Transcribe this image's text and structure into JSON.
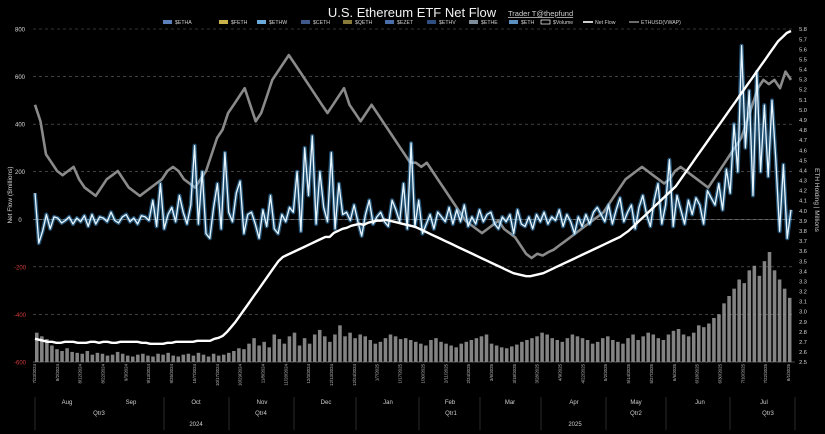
{
  "chart_data": {
    "type": "line",
    "title": "U.S. Ethereum ETF Net Flow",
    "subtitle": "Trader T@thepfund",
    "ylabel_left": "Net Flow ($millions)",
    "ylabel_right": "ETH Holding | Millions",
    "ylim_left": [
      -600,
      800
    ],
    "yticks_left": [
      800,
      600,
      400,
      200,
      0,
      -200,
      -400,
      -600
    ],
    "ylim_right": [
      2.5,
      5.8
    ],
    "yticks_right": [
      5.8,
      5.7,
      5.6,
      5.5,
      5.4,
      5.3,
      5.2,
      5.1,
      5.0,
      4.9,
      4.8,
      4.7,
      4.6,
      4.5,
      4.4,
      4.3,
      4.2,
      4.1,
      4.0,
      3.9,
      3.8,
      3.7,
      3.6,
      3.5,
      3.4,
      3.3,
      3.2,
      3.1,
      3.0,
      2.9,
      2.8,
      2.7,
      2.6,
      2.5
    ],
    "legend": [
      {
        "name": "$ETHA",
        "color": "#5b7fb8",
        "style": "bar"
      },
      {
        "name": "$FETH",
        "color": "#c8b34a",
        "style": "bar"
      },
      {
        "name": "$ETHW",
        "color": "#6aa9d8",
        "style": "bar"
      },
      {
        "name": "$CETH",
        "color": "#3f5a8a",
        "style": "bar"
      },
      {
        "name": "$QETH",
        "color": "#8a7a3a",
        "style": "bar"
      },
      {
        "name": "$EZET",
        "color": "#4a6fa8",
        "style": "bar"
      },
      {
        "name": "$ETHV",
        "color": "#2f4f80",
        "style": "bar"
      },
      {
        "name": "$ETHE",
        "color": "#7f8c9a",
        "style": "bar"
      },
      {
        "name": "$ETH",
        "color": "#5a8fc0",
        "style": "bar"
      },
      {
        "name": "$Volume",
        "color": "#ffffff",
        "style": "box"
      },
      {
        "name": "Net Flow",
        "color": "#ffffff",
        "style": "line"
      },
      {
        "name": "ETHUSD(VWAP)",
        "color": "#888888",
        "style": "line"
      }
    ],
    "months": [
      "Aug",
      "Sep",
      "Oct",
      "Nov",
      "Dec",
      "Jan",
      "Feb",
      "Mar",
      "Apr",
      "May",
      "Jun",
      "Jul"
    ],
    "quarters": [
      "Qtr3",
      "Qtr4",
      "Qtr1",
      "Qtr2",
      "Qtr3"
    ],
    "years": [
      "2024",
      "2025"
    ],
    "date_labels": [
      "7/23/2024",
      "8/2/2024",
      "8/12/2024",
      "8/22/2024",
      "9/3/2024",
      "9/13/2024",
      "9/25/2024",
      "10/7/2024",
      "10/17/2024",
      "10/29/2024",
      "11/8/2024",
      "11/20/2024",
      "12/3/2024",
      "12/13/2024",
      "12/24/2024",
      "1/7/2025",
      "1/17/2025",
      "1/30/2025",
      "2/11/2025",
      "2/24/2025",
      "3/6/2025",
      "3/18/2025",
      "3/28/2025",
      "4/9/2025",
      "4/22/2025",
      "5/2/2025",
      "5/14/2025",
      "5/27/2025",
      "6/6/2025",
      "6/18/2025",
      "6/30/2025",
      "7/10/2025",
      "7/22/2025",
      "8/1/2025"
    ],
    "net_flow": [
      110,
      -100,
      -50,
      20,
      -40,
      10,
      5,
      -15,
      -5,
      10,
      -20,
      5,
      -10,
      15,
      -30,
      20,
      -20,
      10,
      5,
      -10,
      30,
      -5,
      -15,
      10,
      20,
      -10,
      5,
      -20,
      15,
      10,
      -5,
      80,
      -30,
      150,
      -40,
      20,
      50,
      -10,
      100,
      30,
      -20,
      60,
      310,
      -20,
      200,
      -60,
      -80,
      50,
      150,
      -40,
      280,
      30,
      -10,
      110,
      160,
      -60,
      20,
      30,
      -20,
      -80,
      40,
      -30,
      100,
      -40,
      -60,
      20,
      -10,
      50,
      30,
      200,
      -50,
      300,
      100,
      350,
      -20,
      200,
      50,
      -10,
      280,
      -40,
      150,
      20,
      30,
      -5,
      60,
      -10,
      -70,
      20,
      80,
      -20,
      10,
      30,
      -10,
      -30,
      80,
      40,
      -10,
      150,
      -40,
      320,
      -30,
      80,
      -60,
      -20,
      20,
      -40,
      30,
      10,
      -10,
      50,
      -20,
      40,
      -10,
      60,
      -30,
      10,
      -20,
      40,
      -10,
      20,
      30,
      -20,
      -40,
      10,
      -10,
      20,
      -60,
      40,
      -20,
      -30,
      10,
      -40,
      20,
      -10,
      30,
      -20,
      10,
      -5,
      40,
      -30,
      20,
      -10,
      -60,
      10,
      -30,
      20,
      -20,
      30,
      50,
      20,
      -10,
      60,
      -20,
      40,
      90,
      -10,
      30,
      60,
      -40,
      50,
      100,
      20,
      -30,
      80,
      150,
      -20,
      60,
      250,
      -30,
      100,
      40,
      -20,
      80,
      20,
      90,
      60,
      -20,
      120,
      90,
      60,
      150,
      40,
      210,
      110,
      400,
      200,
      730,
      300,
      540,
      100,
      620,
      200,
      480,
      180,
      500,
      250,
      -50,
      230,
      -80,
      40
    ],
    "eth_holding": [
      2.73,
      2.72,
      2.71,
      2.7,
      2.7,
      2.69,
      2.69,
      2.7,
      2.7,
      2.7,
      2.69,
      2.69,
      2.69,
      2.7,
      2.7,
      2.69,
      2.7,
      2.7,
      2.69,
      2.69,
      2.7,
      2.7,
      2.7,
      2.7,
      2.7,
      2.69,
      2.69,
      2.68,
      2.68,
      2.68,
      2.68,
      2.69,
      2.69,
      2.7,
      2.7,
      2.7,
      2.7,
      2.7,
      2.71,
      2.71,
      2.71,
      2.71,
      2.73,
      2.74,
      2.76,
      2.8,
      2.85,
      2.9,
      2.96,
      3.02,
      3.08,
      3.14,
      3.2,
      3.26,
      3.32,
      3.38,
      3.44,
      3.5,
      3.54,
      3.56,
      3.58,
      3.6,
      3.62,
      3.64,
      3.66,
      3.68,
      3.7,
      3.72,
      3.74,
      3.74,
      3.78,
      3.8,
      3.82,
      3.83,
      3.85,
      3.86,
      3.87,
      3.86,
      3.88,
      3.89,
      3.9,
      3.9,
      3.91,
      3.9,
      3.89,
      3.88,
      3.87,
      3.86,
      3.85,
      3.84,
      3.82,
      3.8,
      3.78,
      3.76,
      3.74,
      3.72,
      3.7,
      3.68,
      3.66,
      3.64,
      3.62,
      3.6,
      3.58,
      3.56,
      3.54,
      3.52,
      3.5,
      3.48,
      3.46,
      3.44,
      3.42,
      3.4,
      3.38,
      3.37,
      3.36,
      3.35,
      3.35,
      3.36,
      3.37,
      3.38,
      3.4,
      3.42,
      3.44,
      3.46,
      3.48,
      3.5,
      3.52,
      3.54,
      3.56,
      3.58,
      3.6,
      3.62,
      3.64,
      3.66,
      3.68,
      3.7,
      3.72,
      3.74,
      3.77,
      3.8,
      3.84,
      3.88,
      3.92,
      3.96,
      4.0,
      4.04,
      4.08,
      4.12,
      4.16,
      4.2,
      4.24,
      4.3,
      4.36,
      4.42,
      4.48,
      4.54,
      4.6,
      4.66,
      4.72,
      4.78,
      4.84,
      4.9,
      4.96,
      5.02,
      5.08,
      5.14,
      5.2,
      5.26,
      5.32,
      5.38,
      5.44,
      5.5,
      5.56,
      5.62,
      5.68,
      5.72,
      5.76,
      5.78
    ],
    "eth_price": [
      3400,
      3200,
      2800,
      2700,
      2600,
      2550,
      2600,
      2650,
      2500,
      2400,
      2350,
      2300,
      2400,
      2500,
      2550,
      2600,
      2500,
      2400,
      2350,
      2300,
      2350,
      2400,
      2450,
      2500,
      2600,
      2650,
      2600,
      2500,
      2450,
      2400,
      2500,
      2600,
      2800,
      3000,
      3100,
      3300,
      3400,
      3500,
      3600,
      3400,
      3200,
      3300,
      3500,
      3700,
      3800,
      3900,
      4000,
      3900,
      3800,
      3700,
      3600,
      3500,
      3400,
      3300,
      3400,
      3500,
      3600,
      3400,
      3300,
      3200,
      3300,
      3400,
      3300,
      3200,
      3100,
      3000,
      2900,
      2800,
      2700,
      2700,
      2650,
      2700,
      2600,
      2500,
      2400,
      2300,
      2200,
      2100,
      2000,
      1950,
      1900,
      1850,
      1900,
      1950,
      2000,
      1900,
      1850,
      1800,
      1700,
      1600,
      1550,
      1600,
      1580,
      1620,
      1650,
      1700,
      1750,
      1800,
      1850,
      1900,
      1950,
      2000,
      2050,
      2100,
      2200,
      2300,
      2400,
      2500,
      2550,
      2600,
      2650,
      2600,
      2550,
      2500,
      2450,
      2500,
      2600,
      2650,
      2600,
      2550,
      2500,
      2450,
      2400,
      2500,
      2600,
      2700,
      2800,
      2900,
      3000,
      3200,
      3400,
      3600,
      3700,
      3650,
      3700,
      3600,
      3800,
      3700
    ],
    "volume": [
      320,
      280,
      250,
      180,
      140,
      120,
      150,
      110,
      100,
      90,
      120,
      80,
      100,
      90,
      70,
      80,
      110,
      90,
      70,
      60,
      80,
      90,
      70,
      60,
      90,
      80,
      100,
      70,
      60,
      80,
      90,
      70,
      100,
      80,
      60,
      90,
      70,
      80,
      100,
      120,
      150,
      140,
      200,
      260,
      180,
      220,
      160,
      300,
      250,
      200,
      280,
      320,
      180,
      260,
      200,
      300,
      350,
      280,
      220,
      300,
      400,
      280,
      320,
      260,
      300,
      280,
      240,
      200,
      220,
      260,
      300,
      280,
      250,
      260,
      240,
      220,
      200,
      180,
      240,
      260,
      220,
      200,
      180,
      160,
      200,
      220,
      240,
      260,
      280,
      300,
      200,
      180,
      160,
      150,
      170,
      190,
      220,
      240,
      260,
      280,
      320,
      300,
      260,
      240,
      220,
      260,
      300,
      280,
      260,
      240,
      200,
      220,
      260,
      280,
      240,
      220,
      200,
      260,
      300,
      240,
      280,
      320,
      300,
      260,
      240,
      300,
      340,
      360,
      300,
      280,
      320,
      400,
      380,
      420,
      480,
      520,
      640,
      720,
      800,
      900,
      860,
      1000,
      1050,
      940,
      1100,
      1200,
      1000,
      900,
      800,
      700
    ]
  }
}
